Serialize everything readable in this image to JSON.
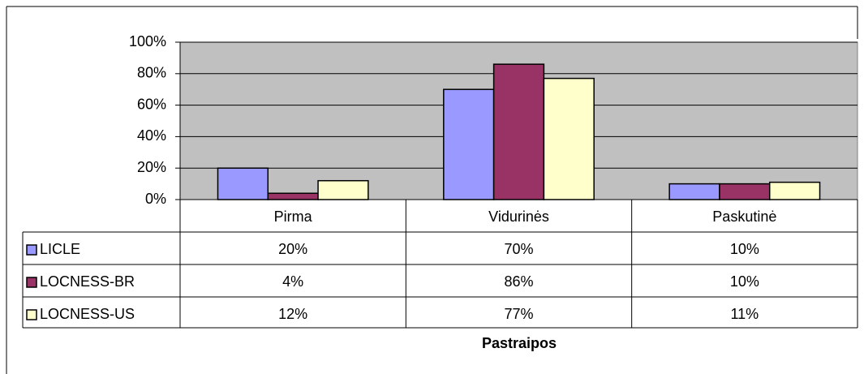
{
  "chart_data": {
    "type": "bar",
    "categories": [
      "Pirma",
      "Vidurinės",
      "Paskutinė"
    ],
    "series": [
      {
        "name": "LICLE",
        "color": "#9999ff",
        "values": [
          20,
          70,
          10
        ],
        "value_labels": [
          "20%",
          "70%",
          "10%"
        ]
      },
      {
        "name": "LOCNESS-BR",
        "color": "#993366",
        "values": [
          4,
          86,
          10
        ],
        "value_labels": [
          "4%",
          "86%",
          "10%"
        ]
      },
      {
        "name": "LOCNESS-US",
        "color": "#ffffcc",
        "values": [
          12,
          77,
          11
        ],
        "value_labels": [
          "12%",
          "77%",
          "11%"
        ]
      }
    ],
    "ylim": [
      0,
      100
    ],
    "yticks": [
      {
        "value": 0,
        "label": "0%"
      },
      {
        "value": 20,
        "label": "20%"
      },
      {
        "value": 40,
        "label": "40%"
      },
      {
        "value": 60,
        "label": "60%"
      },
      {
        "value": 80,
        "label": "80%"
      },
      {
        "value": 100,
        "label": "100%"
      }
    ],
    "xlabel": "Pastraipos",
    "grid": true,
    "plot_background": "#c0c0c0"
  }
}
